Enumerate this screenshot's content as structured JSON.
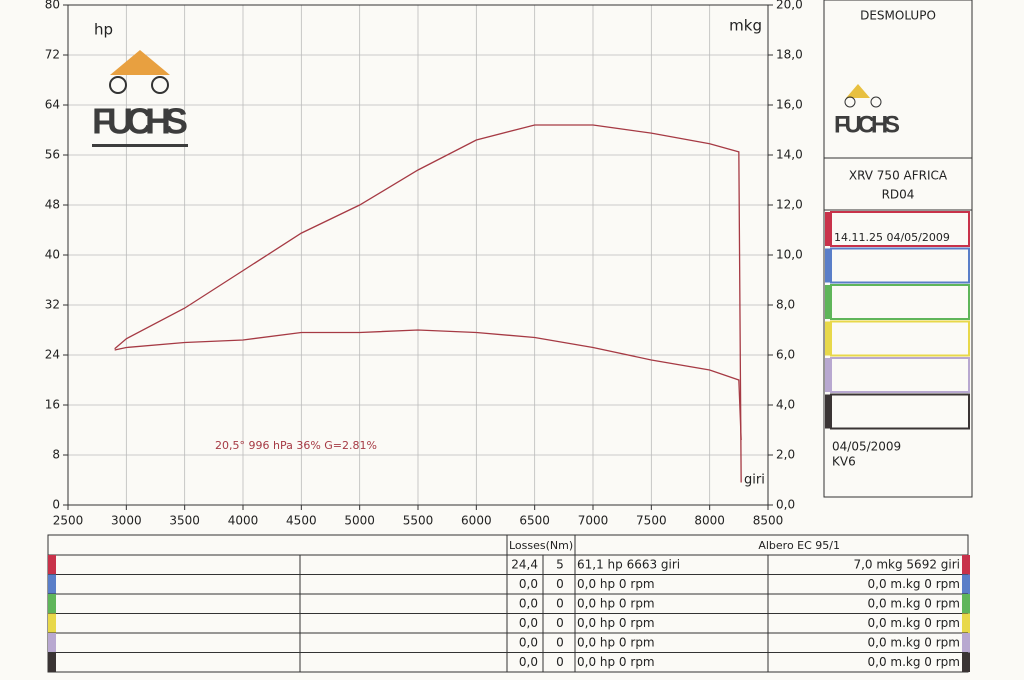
{
  "chart_data": {
    "type": "line",
    "x": [
      2900,
      3000,
      3500,
      4000,
      4500,
      5000,
      5500,
      6000,
      6500,
      7000,
      7500,
      8000,
      8250,
      8270
    ],
    "series": [
      {
        "name": "hp",
        "color": "#a63a44",
        "values": [
          25.0,
          26.6,
          31.5,
          37.5,
          43.5,
          48.0,
          53.6,
          58.4,
          60.8,
          60.8,
          59.5,
          57.8,
          56.5,
          3.6
        ]
      },
      {
        "name": "mkg",
        "color": "#a63a44",
        "axis": "y2",
        "values": [
          6.2,
          6.3,
          6.5,
          6.6,
          6.9,
          6.9,
          7.0,
          6.9,
          6.7,
          6.3,
          5.8,
          5.4,
          5.0,
          2.6
        ]
      }
    ],
    "x_unit": "giri",
    "xlim": [
      2500,
      8500
    ],
    "xticks": [
      2500,
      3000,
      3500,
      4000,
      4500,
      5000,
      5500,
      6000,
      6500,
      7000,
      7500,
      8000,
      8500
    ],
    "ylim": [
      0,
      80
    ],
    "yticks": [
      0,
      8,
      16,
      24,
      32,
      40,
      48,
      56,
      64,
      72,
      80
    ],
    "y2lim": [
      0,
      20
    ],
    "y2ticks": [
      {
        "value": 0,
        "label": "0,0"
      },
      {
        "value": 2,
        "label": "2,0"
      },
      {
        "value": 4,
        "label": "4,0"
      },
      {
        "value": 6,
        "label": "6,0"
      },
      {
        "value": 8,
        "label": "8,0"
      },
      {
        "value": 10,
        "label": "10,0"
      },
      {
        "value": 12,
        "label": "12,0"
      },
      {
        "value": 14,
        "label": "14,0"
      },
      {
        "value": 16,
        "label": "16,0"
      },
      {
        "value": 18,
        "label": "18,0"
      },
      {
        "value": 20,
        "label": "20,0"
      }
    ],
    "grid": true,
    "annotation": "20,5°  996 hPa  36%    G=2.81%",
    "logo": "FUCHS"
  },
  "panel": {
    "owner": "DESMOLUPO",
    "logo": "FUCHS",
    "model": "XRV 750 AFRICA",
    "code": "RD04",
    "runs": [
      {
        "color": "#c8324a",
        "label": "14.11.25  04/05/2009"
      },
      {
        "color": "#5a7ec8",
        "label": null
      },
      {
        "color": "#5fb55a",
        "label": null
      },
      {
        "color": "#e8d84a",
        "label": null
      },
      {
        "color": "#b8a8d0",
        "label": null
      },
      {
        "color": "#3a3434",
        "label": null
      }
    ],
    "date": "04/05/2009",
    "id": "KV6"
  },
  "table": {
    "header": [
      "Losses(Nm)",
      "Albero EC 95/1"
    ],
    "rows": [
      [
        "24,4",
        "5",
        "61,1 hp 6663 giri",
        "7,0 mkg 5692 giri"
      ],
      [
        "0,0",
        "0",
        "0,0 hp 0 rpm",
        "0,0 m.kg 0 rpm"
      ],
      [
        "0,0",
        "0",
        "0,0 hp 0 rpm",
        "0,0 m.kg 0 rpm"
      ],
      [
        "0,0",
        "0",
        "0,0 hp 0 rpm",
        "0,0 m.kg 0 rpm"
      ],
      [
        "0,0",
        "0",
        "0,0 hp 0 rpm",
        "0,0 m.kg 0 rpm"
      ],
      [
        "0,0",
        "0",
        "0,0 hp 0 rpm",
        "0,0 m.kg 0 rpm"
      ]
    ]
  }
}
